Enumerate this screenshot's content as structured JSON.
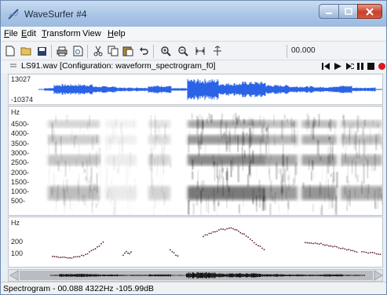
{
  "window": {
    "title": "WaveSurfer #4"
  },
  "menu": [
    {
      "underline": "F",
      "rest": "ile"
    },
    {
      "underline": "E",
      "rest": "dit"
    },
    {
      "underline": "T",
      "rest": "ransform"
    },
    {
      "underline": "",
      "rest": "View"
    },
    {
      "underline": "H",
      "rest": "elp"
    }
  ],
  "toolbar": {
    "time": "00.000"
  },
  "sound": {
    "title": "LS91.wav [Configuration: waveform_spectrogram_f0]"
  },
  "waveform": {
    "max_label": "13027",
    "min_label": "-10374"
  },
  "spectrogram": {
    "unit": "Hz",
    "ticks": [
      "4500",
      "4000",
      "3500",
      "3000",
      "2500",
      "2000",
      "1500",
      "1000",
      "500"
    ]
  },
  "pitch": {
    "unit": "Hz",
    "ticks": [
      "200",
      "100"
    ]
  },
  "status": {
    "text": "Spectrogram - 00.088 4322Hz -105.99dB"
  }
}
